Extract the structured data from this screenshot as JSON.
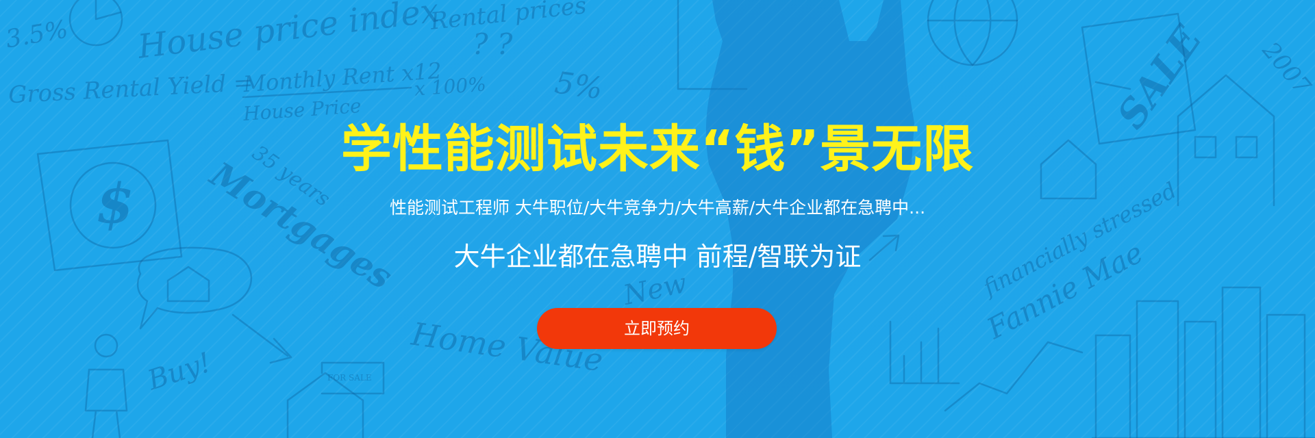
{
  "banner": {
    "headline": "学性能测试未来“钱”景无限",
    "subline": "性能测试工程师 大牛职位/大牛竞争力/大牛高薪/大牛企业都在急聘中...",
    "tagline": "大牛企业都在急聘中 前程/智联为证",
    "cta_label": "立即预约",
    "colors": {
      "background": "#1ea6ea",
      "headline": "#fff21a",
      "text": "#ffffff",
      "cta": "#f2380a"
    }
  },
  "background_doodles": {
    "house_price_index": "House price index",
    "rental_prices": "Rental prices",
    "gross_rental_yield": "Gross Rental Yield =",
    "monthly_rent": "Monthly Rent x12",
    "house_price": "House Price",
    "times_100": "x 100%",
    "percent_35": "3.5%",
    "percent_5": "5%",
    "years_35": "35 years",
    "mortgages": "Mortgages",
    "new": "New",
    "home_value": "Home Value",
    "buy": "Buy!",
    "for_sale": "FOR SALE",
    "sale": "SALE",
    "year_2007": "2007",
    "financially_stressed": "financially stressed",
    "fannie_mae": "Fannie Mae",
    "dollar": "$",
    "question_marks": "? ?"
  }
}
